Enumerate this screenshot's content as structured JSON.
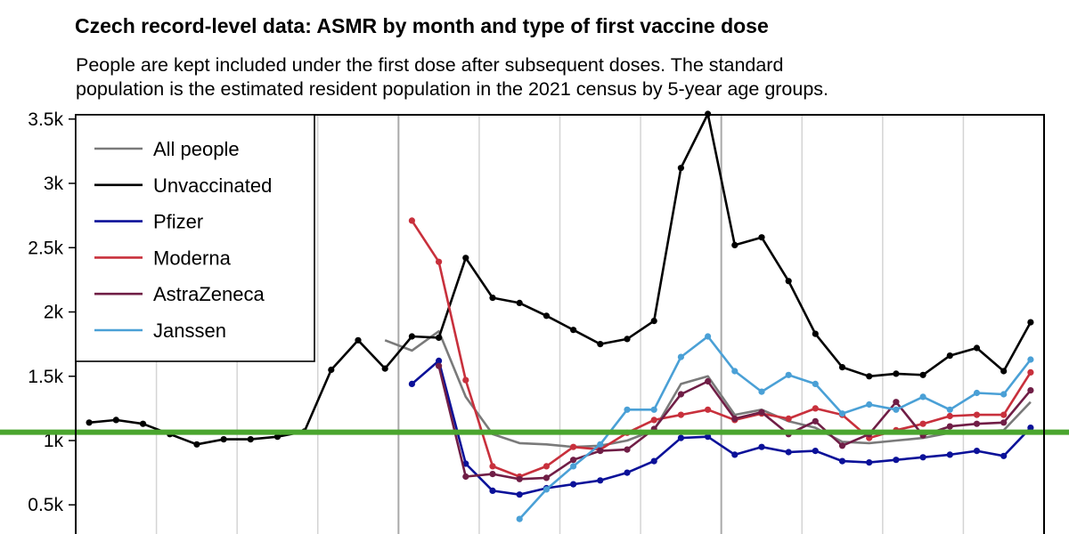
{
  "chart_data": {
    "type": "line",
    "title": "Czech record-level data: ASMR by month and type of first vaccine dose",
    "subtitle_lines": [
      "People are kept included under the first dose after subsequent doses. The standard",
      "population is the estimated resident population in the 2021 census by 5-year age groups."
    ],
    "xlabel": "",
    "ylabel": "",
    "ylim": [
      300,
      3550
    ],
    "yticks": [
      500,
      1000,
      1500,
      2000,
      2500,
      3000,
      3500
    ],
    "ytick_labels": [
      "0.5k",
      "1k",
      "1.5k",
      "2k",
      "2.5k",
      "3k",
      "3.5k"
    ],
    "x_range": [
      -0.5,
      35.5
    ],
    "vlines_major": [
      11.5,
      23.5
    ],
    "vlines_minor": [
      2.5,
      5.5,
      8.5,
      14.5,
      17.5,
      20.5,
      26.5,
      29.5,
      32.5
    ],
    "horizontal_reference": {
      "value": 1065,
      "color": "#4aa52e"
    },
    "legend_position": "top-left",
    "series": [
      {
        "name": "All people",
        "color": "#7a7a7a",
        "markers": false,
        "x": [
          11,
          12,
          13,
          14,
          15,
          16,
          17,
          18,
          19,
          20,
          21,
          22,
          23,
          24,
          25,
          26,
          27,
          28,
          29,
          30,
          31,
          32,
          33,
          34,
          35
        ],
        "values": [
          1780,
          1700,
          1850,
          1340,
          1050,
          980,
          970,
          950,
          960,
          1000,
          1080,
          1440,
          1500,
          1200,
          1240,
          1150,
          1100,
          990,
          980,
          1000,
          1020,
          1060,
          1070,
          1080,
          1300
        ]
      },
      {
        "name": "Unvaccinated",
        "color": "#000000",
        "markers": true,
        "x": [
          0,
          1,
          2,
          3,
          4,
          5,
          6,
          7,
          8,
          9,
          10,
          11,
          12,
          13,
          14,
          15,
          16,
          17,
          18,
          19,
          20,
          21,
          22,
          23,
          24,
          25,
          26,
          27,
          28,
          29,
          30,
          31,
          32,
          33,
          34,
          35
        ],
        "values": [
          1140,
          1160,
          1130,
          1050,
          970,
          1010,
          1010,
          1030,
          1070,
          1550,
          1780,
          1560,
          1810,
          1800,
          2420,
          2110,
          2070,
          1970,
          1860,
          1750,
          1790,
          1930,
          3120,
          3540,
          2520,
          2580,
          2240,
          1830,
          1570,
          1500,
          1520,
          1510,
          1660,
          1720,
          1540,
          1920
        ]
      },
      {
        "name": "Pfizer",
        "color": "#0b1199",
        "markers": true,
        "x": [
          12,
          13,
          14,
          15,
          16,
          17,
          18,
          19,
          20,
          21,
          22,
          23,
          24,
          25,
          26,
          27,
          28,
          29,
          30,
          31,
          32,
          33,
          34,
          35
        ],
        "values": [
          1440,
          1620,
          820,
          610,
          580,
          630,
          660,
          690,
          750,
          840,
          1020,
          1030,
          890,
          950,
          910,
          920,
          840,
          830,
          850,
          870,
          890,
          920,
          880,
          1100
        ]
      },
      {
        "name": "Moderna",
        "color": "#c8303c",
        "markers": true,
        "x": [
          12,
          13,
          14,
          15,
          16,
          17,
          18,
          19,
          20,
          21,
          22,
          23,
          24,
          25,
          26,
          27,
          28,
          29,
          30,
          31,
          32,
          33,
          34,
          35
        ],
        "values": [
          2710,
          2390,
          1470,
          800,
          720,
          800,
          950,
          930,
          1060,
          1160,
          1200,
          1240,
          1160,
          1210,
          1170,
          1250,
          1200,
          1020,
          1080,
          1130,
          1190,
          1200,
          1200,
          1530
        ]
      },
      {
        "name": "AstraZeneca",
        "color": "#701e46",
        "markers": true,
        "x": [
          13,
          14,
          15,
          16,
          17,
          18,
          19,
          20,
          21,
          22,
          23,
          24,
          25,
          26,
          27,
          28,
          29,
          30,
          31,
          32,
          33,
          34,
          35
        ],
        "values": [
          1580,
          720,
          740,
          700,
          710,
          850,
          920,
          930,
          1090,
          1360,
          1460,
          1170,
          1220,
          1050,
          1150,
          960,
          1050,
          1300,
          1040,
          1110,
          1130,
          1140,
          1390
        ]
      },
      {
        "name": "Janssen",
        "color": "#4aa0d6",
        "markers": true,
        "x": [
          16,
          17,
          18,
          19,
          20,
          21,
          22,
          23,
          24,
          25,
          26,
          27,
          28,
          29,
          30,
          31,
          32,
          33,
          34,
          35
        ],
        "values": [
          390,
          620,
          800,
          970,
          1240,
          1240,
          1650,
          1810,
          1540,
          1380,
          1510,
          1440,
          1210,
          1280,
          1240,
          1340,
          1240,
          1370,
          1360,
          1630
        ]
      }
    ]
  }
}
